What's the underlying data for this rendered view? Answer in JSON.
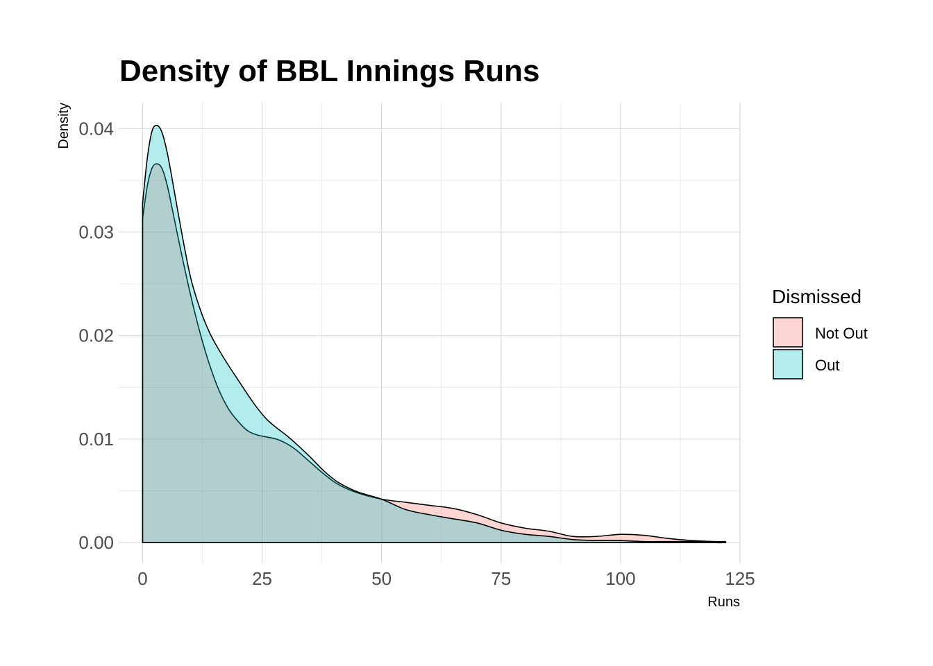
{
  "chart_data": {
    "type": "area",
    "title": "Density of BBL Innings Runs",
    "xlabel": "Runs",
    "ylabel": "Density",
    "xlim": [
      -5,
      125
    ],
    "ylim": [
      -0.002,
      0.0425
    ],
    "x_ticks": [
      0,
      25,
      50,
      75,
      100,
      125
    ],
    "x_tick_labels": [
      "0",
      "25",
      "50",
      "75",
      "100",
      "125"
    ],
    "y_ticks": [
      0,
      0.01,
      0.02,
      0.03,
      0.04
    ],
    "y_tick_labels": [
      "0.00",
      "0.01",
      "0.02",
      "0.03",
      "0.04"
    ],
    "grid": true,
    "legend": {
      "title": "Dismissed",
      "position": "right"
    },
    "series": [
      {
        "name": "Not Out",
        "color": "#F8766D",
        "x": [
          0,
          1,
          2,
          3,
          4,
          5,
          6,
          8,
          10,
          12,
          14,
          16,
          18,
          20,
          22,
          24,
          26,
          28,
          30,
          32,
          35,
          38,
          41,
          45,
          50,
          55,
          60,
          65,
          70,
          75,
          80,
          85,
          90,
          95,
          100,
          105,
          110,
          115,
          120,
          122
        ],
        "y": [
          0.0313,
          0.0345,
          0.0362,
          0.0366,
          0.0362,
          0.0348,
          0.0327,
          0.0282,
          0.024,
          0.0203,
          0.0172,
          0.0147,
          0.0129,
          0.0117,
          0.0108,
          0.0104,
          0.0102,
          0.01,
          0.0096,
          0.009,
          0.0078,
          0.0066,
          0.0056,
          0.0048,
          0.0042,
          0.0039,
          0.0036,
          0.0033,
          0.0027,
          0.0019,
          0.0014,
          0.0011,
          0.0006,
          0.0006,
          0.0008,
          0.0007,
          0.0004,
          0.0002,
          0.0001,
          0.0001
        ]
      },
      {
        "name": "Out",
        "color": "#00BFC4",
        "x": [
          0,
          1,
          2,
          3,
          4,
          5,
          6,
          8,
          10,
          12,
          14,
          16,
          18,
          20,
          22,
          24,
          26,
          28,
          30,
          32,
          35,
          38,
          41,
          45,
          50,
          55,
          60,
          65,
          70,
          75,
          80,
          85,
          90,
          95,
          100,
          105,
          110,
          115,
          120,
          122
        ],
        "y": [
          0.0328,
          0.0372,
          0.0398,
          0.0403,
          0.0397,
          0.038,
          0.0356,
          0.0304,
          0.0257,
          0.0226,
          0.0203,
          0.0186,
          0.0171,
          0.0157,
          0.0143,
          0.013,
          0.0119,
          0.0111,
          0.0104,
          0.0096,
          0.0083,
          0.0069,
          0.0058,
          0.0049,
          0.0042,
          0.0032,
          0.0027,
          0.0023,
          0.0019,
          0.0012,
          0.0008,
          0.0006,
          0.0003,
          0.0002,
          0.0002,
          0.0001,
          0.0001,
          0.0001,
          0.0,
          0.0
        ]
      }
    ]
  }
}
